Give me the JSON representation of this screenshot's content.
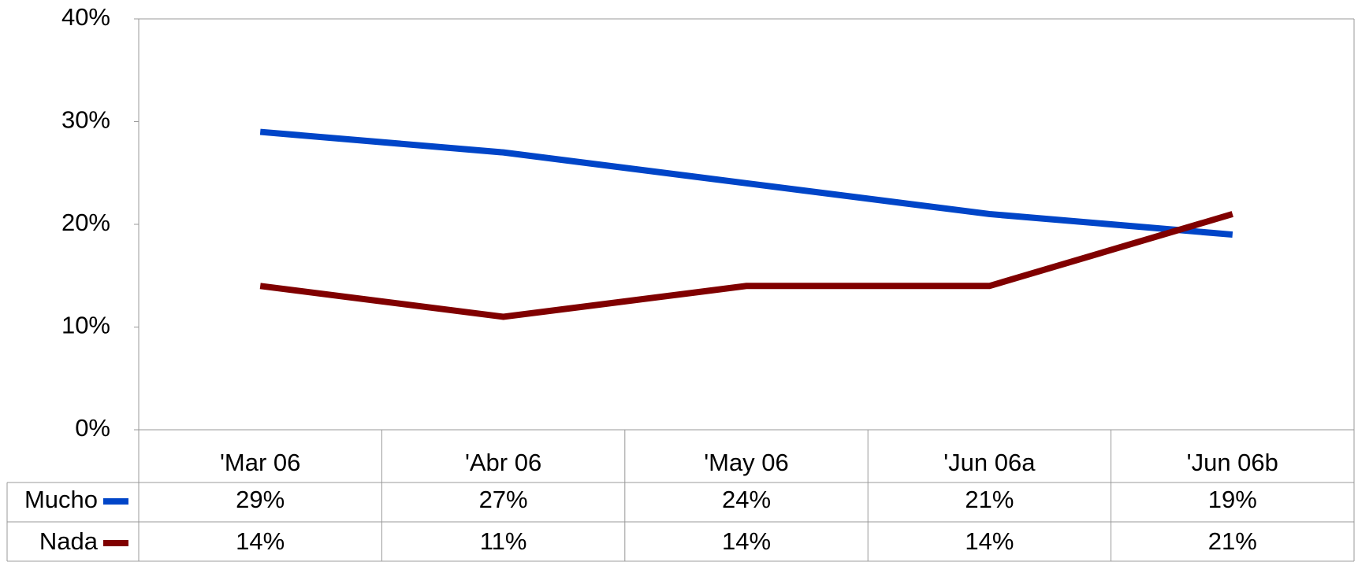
{
  "chart_data": {
    "type": "line",
    "categories": [
      "'Mar 06",
      "'Abr 06",
      "'May 06",
      "'Jun 06a",
      "'Jun 06b"
    ],
    "series": [
      {
        "name": "Mucho",
        "color": "#0045c8",
        "values": [
          29,
          27,
          24,
          21,
          19
        ],
        "value_labels": [
          "29%",
          "27%",
          "24%",
          "21%",
          "19%"
        ]
      },
      {
        "name": "Nada",
        "color": "#800000",
        "values": [
          14,
          11,
          14,
          14,
          21
        ],
        "value_labels": [
          "14%",
          "11%",
          "14%",
          "14%",
          "21%"
        ]
      }
    ],
    "ylim": [
      0,
      40
    ],
    "yticks": [
      {
        "value": 0,
        "label": "0%"
      },
      {
        "value": 10,
        "label": "10%"
      },
      {
        "value": 20,
        "label": "20%"
      },
      {
        "value": 30,
        "label": "30%"
      },
      {
        "value": 40,
        "label": "40%"
      }
    ],
    "grid": false
  }
}
